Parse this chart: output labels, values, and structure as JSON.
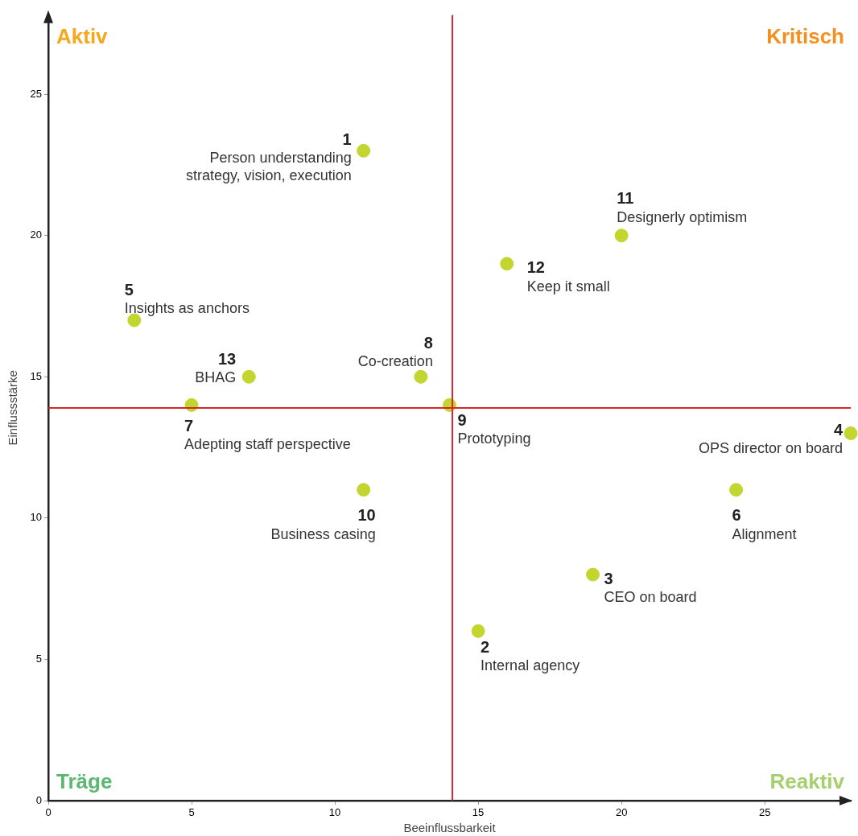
{
  "chart_data": {
    "type": "scatter",
    "xlabel": "Beeinflussbarkeit",
    "ylabel": "Einflussstärke",
    "x": [
      11,
      15,
      19,
      28,
      3,
      24,
      5,
      13,
      14,
      11,
      20,
      16,
      7
    ],
    "values": [
      23,
      6,
      8,
      13,
      17,
      11,
      14,
      15,
      14,
      11,
      20,
      19,
      15
    ],
    "color": "#c3d62f",
    "marker": "circle",
    "xlim": [
      0,
      28
    ],
    "ylim": [
      0,
      27.8
    ],
    "xticks": [
      0,
      5,
      10,
      15,
      20,
      25
    ],
    "yticks": [
      0,
      5,
      10,
      15,
      20,
      25
    ],
    "grid": false,
    "legend": false,
    "ref_lines": [
      {
        "axis": "x",
        "value": 14.1,
        "color": "#d7262b"
      },
      {
        "axis": "y",
        "value": 13.9,
        "color": "#d7262b"
      }
    ],
    "annotations": [
      "Aktiv",
      "Kritisch",
      "Träge",
      "Reaktiv",
      {
        "text": "1\nPerson understanding\nstrategy, vision, execution",
        "x": 11,
        "y": 23
      },
      {
        "text": "2\nInternal agency",
        "x": 15,
        "y": 6
      },
      {
        "text": "3\nCEO on board",
        "x": 19,
        "y": 8
      },
      {
        "text": "4\nOPS director on board",
        "x": 28,
        "y": 13
      },
      {
        "text": "5\nInsights as anchors",
        "x": 3,
        "y": 17
      },
      {
        "text": "6\nAlignment",
        "x": 24,
        "y": 11
      },
      {
        "text": "7\nAdepting staff perspective",
        "x": 5,
        "y": 14
      },
      {
        "text": "8\nCo-creation",
        "x": 13,
        "y": 15
      },
      {
        "text": "9\nPrototyping",
        "x": 14,
        "y": 14
      },
      {
        "text": "10\nBusiness casing",
        "x": 11,
        "y": 11
      },
      {
        "text": "11\nDesignerly optimism",
        "x": 20,
        "y": 20
      },
      {
        "text": "12\nKeep it small",
        "x": 16,
        "y": 19
      },
      {
        "text": "13\nBHAG",
        "x": 7,
        "y": 15
      }
    ]
  }
}
